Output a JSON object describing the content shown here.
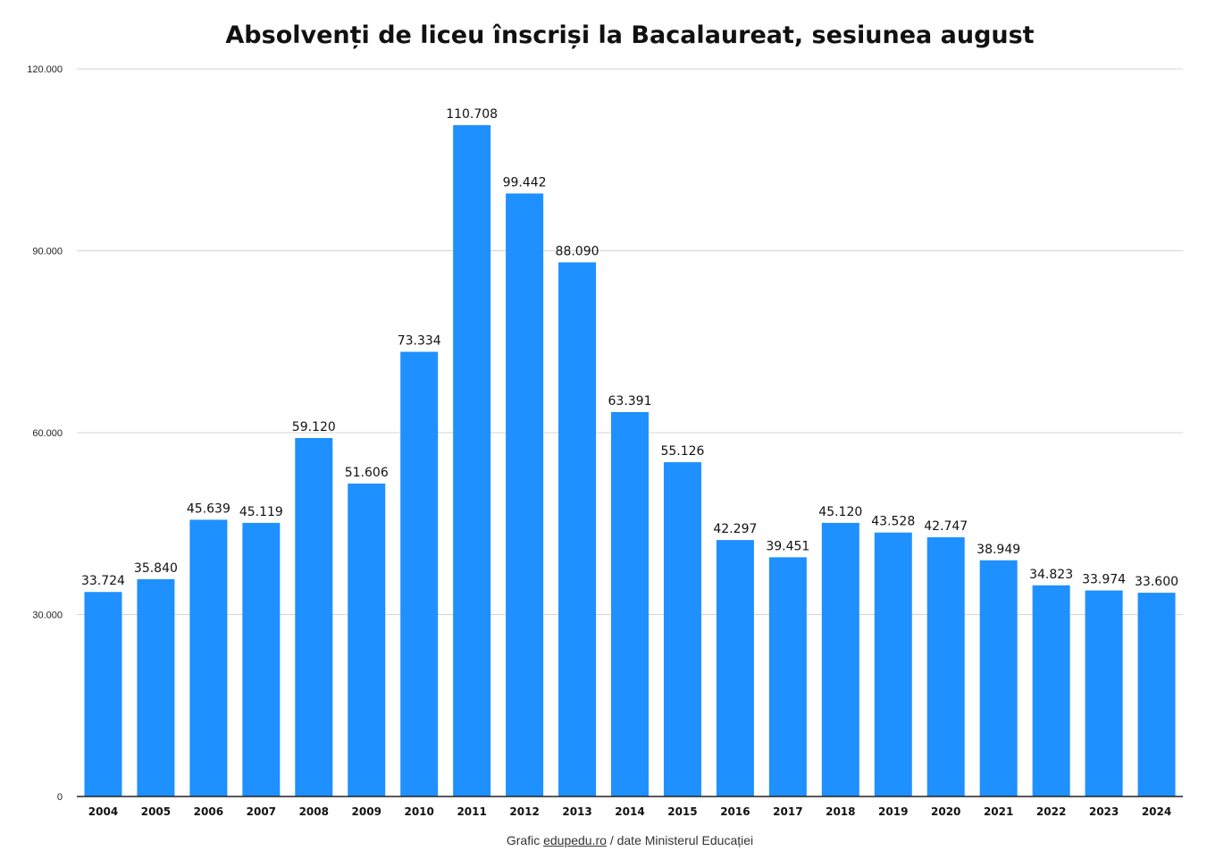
{
  "colors": {
    "bar": "#1e90ff",
    "grid": "#d4d4d4",
    "axis": "#222222",
    "text": "#111111"
  },
  "footer": {
    "prefix": "Grafic ",
    "link": "edupedu.ro",
    "suffix": " / date Ministerul Educației"
  },
  "chart_data": {
    "type": "bar",
    "title": "Absolvenți de liceu înscriși la Bacalaureat, sesiunea august",
    "xlabel": "",
    "ylabel": "",
    "ylim": [
      0,
      120000
    ],
    "grid": true,
    "legend": "none",
    "yticks": [
      {
        "value": 0,
        "label": "0"
      },
      {
        "value": 30000,
        "label": "30.000"
      },
      {
        "value": 60000,
        "label": "60.000"
      },
      {
        "value": 90000,
        "label": "90.000"
      },
      {
        "value": 120000,
        "label": "120.000"
      }
    ],
    "categories": [
      "2004",
      "2005",
      "2006",
      "2007",
      "2008",
      "2009",
      "2010",
      "2011",
      "2012",
      "2013",
      "2014",
      "2015",
      "2016",
      "2017",
      "2018",
      "2019",
      "2020",
      "2021",
      "2022",
      "2023",
      "2024"
    ],
    "values": [
      33724,
      35840,
      45639,
      45119,
      59120,
      51606,
      73334,
      110708,
      99442,
      88090,
      63391,
      55126,
      42297,
      39451,
      45120,
      43528,
      42747,
      38949,
      34823,
      33974,
      33600
    ],
    "value_labels": [
      "33.724",
      "35.840",
      "45.639",
      "45.119",
      "59.120",
      "51.606",
      "73.334",
      "110.708",
      "99.442",
      "88.090",
      "63.391",
      "55.126",
      "42.297",
      "39.451",
      "45.120",
      "43.528",
      "42.747",
      "38.949",
      "34.823",
      "33.974",
      "33.600"
    ]
  }
}
